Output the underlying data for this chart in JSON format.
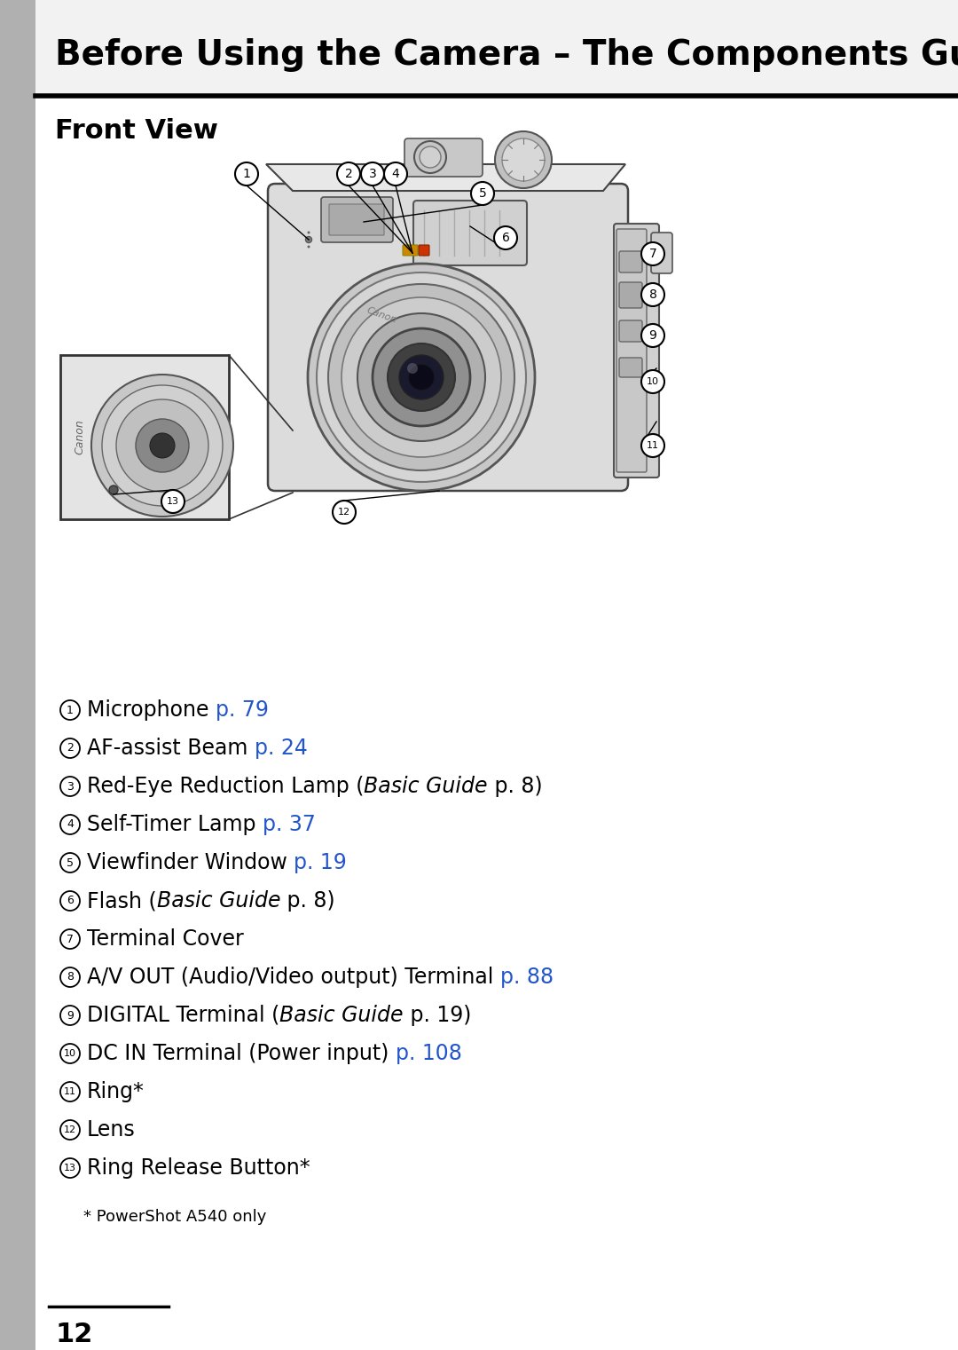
{
  "title": "Before Using the Camera – The Components Guide",
  "section": "Front View",
  "page_number": "12",
  "bg": "#ffffff",
  "sidebar_color": "#b0b0b0",
  "blue": "#2255cc",
  "items": [
    {
      "num": "1",
      "pre": "Microphone ",
      "link": "p. 79",
      "italic": "",
      "post": ""
    },
    {
      "num": "2",
      "pre": "AF-assist Beam ",
      "link": "p. 24",
      "italic": "",
      "post": ""
    },
    {
      "num": "3",
      "pre": "Red-Eye Reduction Lamp (",
      "link": "",
      "italic": "Basic Guide",
      "post": " p. 8)"
    },
    {
      "num": "4",
      "pre": "Self-Timer Lamp ",
      "link": "p. 37",
      "italic": "",
      "post": ""
    },
    {
      "num": "5",
      "pre": "Viewfinder Window ",
      "link": "p. 19",
      "italic": "",
      "post": ""
    },
    {
      "num": "6",
      "pre": "Flash (",
      "link": "",
      "italic": "Basic Guide",
      "post": " p. 8)"
    },
    {
      "num": "7",
      "pre": "Terminal Cover",
      "link": "",
      "italic": "",
      "post": ""
    },
    {
      "num": "8",
      "pre": "A/V OUT (Audio/Video output) Terminal ",
      "link": "p. 88",
      "italic": "",
      "post": ""
    },
    {
      "num": "9",
      "pre": "DIGITAL Terminal (",
      "link": "",
      "italic": "Basic Guide",
      "post": " p. 19)"
    },
    {
      "num": "10",
      "pre": "DC IN Terminal (Power input) ",
      "link": "p. 108",
      "italic": "",
      "post": ""
    },
    {
      "num": "11",
      "pre": "Ring*",
      "link": "",
      "italic": "",
      "post": ""
    },
    {
      "num": "12",
      "pre": "Lens",
      "link": "",
      "italic": "",
      "post": ""
    },
    {
      "num": "13",
      "pre": "Ring Release Button*",
      "link": "",
      "italic": "",
      "post": ""
    }
  ],
  "footnote": "* PowerShot A540 only"
}
